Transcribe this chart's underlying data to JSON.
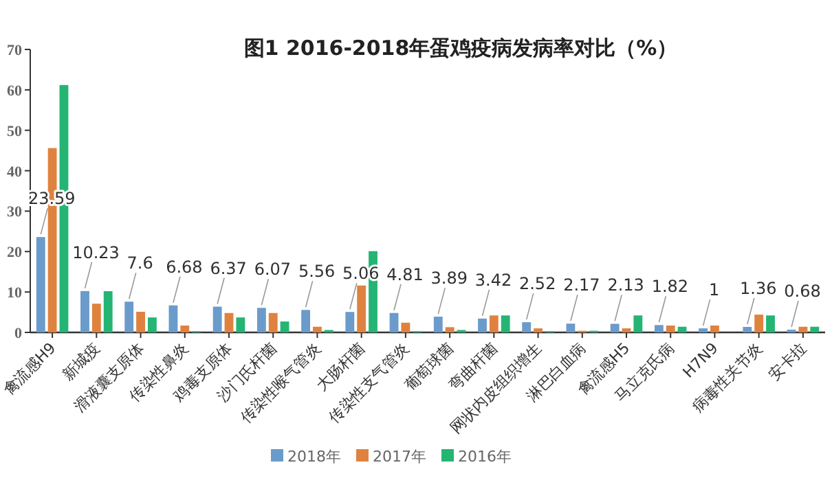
{
  "chart_data": {
    "type": "bar",
    "title": "图1  2016-2018年蛋鸡疫病发病率对比（%）",
    "categories": [
      "禽流感H9",
      "新城疫",
      "滑液囊支原体",
      "传染性鼻炎",
      "鸡毒支原体",
      "沙门氏杆菌",
      "传染性喉气管炎",
      "大肠杆菌",
      "传染性支气管炎",
      "葡萄球菌",
      "弯曲杆菌",
      "网状内皮组织增生",
      "淋巴白血病",
      "禽流感H5",
      "马立克氏病",
      "H7N9",
      "病毒性关节炎",
      "安卡拉"
    ],
    "series": [
      {
        "name": "2018年",
        "color": "#6a9bcb",
        "values": [
          23.59,
          10.23,
          7.6,
          6.68,
          6.37,
          6.07,
          5.56,
          5.06,
          4.81,
          3.89,
          3.42,
          2.52,
          2.17,
          2.13,
          1.82,
          1,
          1.36,
          0.68
        ],
        "value_labels": [
          "23.59",
          "10.23",
          "7.6",
          "6.68",
          "6.37",
          "6.07",
          "5.56",
          "5.06",
          "4.81",
          "3.89",
          "3.42",
          "2.52",
          "2.17",
          "2.13",
          "1.82",
          "1",
          "1.36",
          "0.68"
        ]
      },
      {
        "name": "2017年",
        "color": "#e0823f",
        "values": [
          45.6,
          7.1,
          5.1,
          1.7,
          4.8,
          4.8,
          1.4,
          11.6,
          2.4,
          1.3,
          4.2,
          1.0,
          0.4,
          1.0,
          1.7,
          1.7,
          4.4,
          1.4
        ]
      },
      {
        "name": "2016年",
        "color": "#24b574",
        "values": [
          61.2,
          10.2,
          3.7,
          0.3,
          3.7,
          2.7,
          0.6,
          20.1,
          0.3,
          0.6,
          4.2,
          0.3,
          0.4,
          4.2,
          1.4,
          null,
          4.2,
          1.4
        ]
      }
    ],
    "ylim": [
      0,
      70
    ],
    "yticks": [
      0,
      10,
      20,
      30,
      40,
      50,
      60,
      70
    ],
    "grid": false,
    "legend": "bottom"
  }
}
